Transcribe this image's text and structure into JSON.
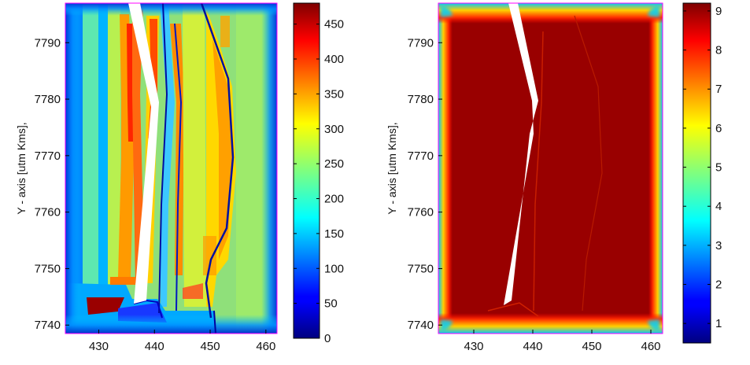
{
  "chart_data": [
    {
      "type": "heatmap",
      "title": "",
      "xlabel": "",
      "ylabel": "Y - axis [utm Kms],",
      "xlim": [
        424,
        462
      ],
      "ylim": [
        7738.5,
        7797
      ],
      "x_ticks": [
        "430",
        "440",
        "450",
        "460"
      ],
      "y_ticks": [
        "7740",
        "7750",
        "7760",
        "7770",
        "7780",
        "7790"
      ],
      "colorbar": {
        "range": [
          0,
          480
        ],
        "ticks": [
          "0",
          "50",
          "100",
          "150",
          "200",
          "250",
          "300",
          "350",
          "400",
          "450"
        ],
        "colormap": "jet"
      },
      "grid": false
    },
    {
      "type": "heatmap",
      "title": "",
      "xlabel": "",
      "ylabel": "Y - axis [utm Kms],",
      "xlim": [
        424,
        462
      ],
      "ylim": [
        7738.5,
        7797
      ],
      "x_ticks": [
        "430",
        "440",
        "450",
        "460"
      ],
      "y_ticks": [
        "7740",
        "7750",
        "7760",
        "7770",
        "7780",
        "7790"
      ],
      "colorbar": {
        "range": [
          0.5,
          9.2
        ],
        "ticks": [
          "1",
          "2",
          "3",
          "4",
          "5",
          "6",
          "7",
          "8",
          "9"
        ],
        "colormap": "jet"
      },
      "grid": false
    }
  ],
  "colors": {
    "axis_frame": "#ff00ff",
    "dark_red": "#8b0000",
    "background": "#ffffff"
  }
}
